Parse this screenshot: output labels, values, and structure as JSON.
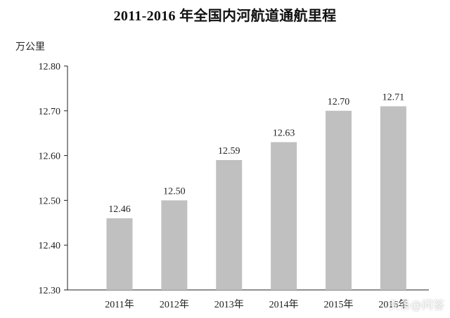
{
  "chart_data": {
    "type": "bar",
    "title": "2011-2016 年全国内河航道通航里程",
    "ylabel": "万公里",
    "xlabel": "",
    "categories": [
      "2011年",
      "2012年",
      "2013年",
      "2014年",
      "2015年",
      "2016年"
    ],
    "values": [
      12.46,
      12.5,
      12.59,
      12.63,
      12.7,
      12.71
    ],
    "value_labels": [
      "12.46",
      "12.50",
      "12.59",
      "12.63",
      "12.70",
      "12.71"
    ],
    "ylim": [
      12.3,
      12.8
    ],
    "yticks": [
      12.3,
      12.4,
      12.5,
      12.6,
      12.7,
      12.8
    ],
    "ytick_labels": [
      "12.30",
      "12.40",
      "12.50",
      "12.60",
      "12.70",
      "12.80"
    ],
    "grid": false,
    "colors": {
      "bar": "#c0c0c0",
      "axis": "#222222"
    }
  },
  "watermark": "头条@问答"
}
